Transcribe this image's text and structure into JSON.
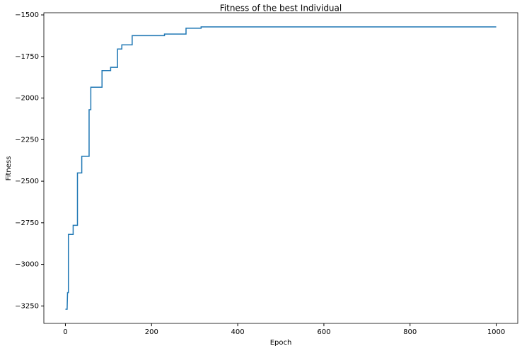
{
  "chart_data": {
    "type": "line",
    "title": "Fitness of the best Individual",
    "xlabel": "Epoch",
    "ylabel": "Fitness",
    "x": [
      0,
      4,
      5,
      7,
      7,
      18,
      18,
      28,
      28,
      38,
      38,
      55,
      55,
      59,
      59,
      85,
      85,
      105,
      105,
      121,
      121,
      131,
      131,
      155,
      155,
      230,
      230,
      280,
      280,
      315,
      315,
      1000
    ],
    "series": [
      {
        "name": "Fitness",
        "color": "#1f77b4",
        "values": [
          -3270,
          -3270,
          -3170,
          -3170,
          -2820,
          -2820,
          -2765,
          -2765,
          -2450,
          -2450,
          -2350,
          -2350,
          -2070,
          -2070,
          -1935,
          -1935,
          -1835,
          -1835,
          -1815,
          -1815,
          -1705,
          -1705,
          -1680,
          -1680,
          -1625,
          -1625,
          -1615,
          -1615,
          -1580,
          -1580,
          -1572,
          -1572
        ]
      }
    ],
    "xlim": [
      -50,
      1050
    ],
    "ylim": [
      -3355,
      -1487
    ],
    "xticks": [
      0,
      200,
      400,
      600,
      800,
      1000
    ],
    "yticks": [
      {
        "value": -3250,
        "label": "−3250"
      },
      {
        "value": -3000,
        "label": "−3000"
      },
      {
        "value": -2750,
        "label": "−2750"
      },
      {
        "value": -2500,
        "label": "−2500"
      },
      {
        "value": -2250,
        "label": "−2250"
      },
      {
        "value": -2000,
        "label": "−2000"
      },
      {
        "value": -1750,
        "label": "−1750"
      },
      {
        "value": -1500,
        "label": "−1500"
      }
    ]
  }
}
